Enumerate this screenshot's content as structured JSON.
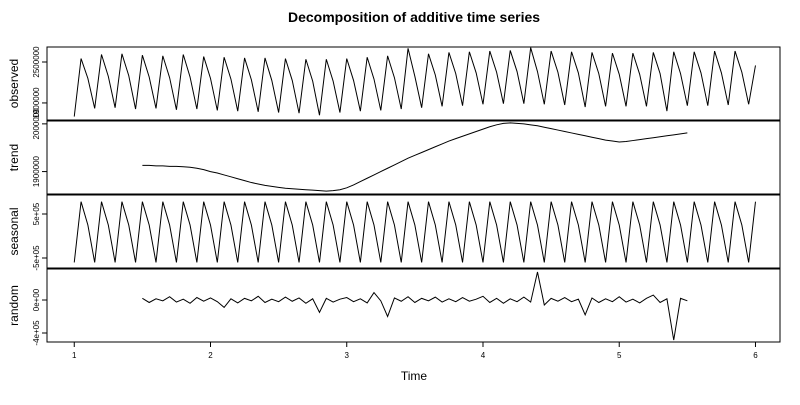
{
  "chart_data": {
    "type": "line",
    "title": "Decomposition of additive time series",
    "xlabel": "Time",
    "color": "#000000",
    "xlim": [
      0.8,
      6.18
    ],
    "xticks": [
      1,
      2,
      3,
      4,
      5,
      6
    ],
    "x": [
      1.0,
      1.05,
      1.1,
      1.15,
      1.2,
      1.25,
      1.3,
      1.35,
      1.4,
      1.45,
      1.5,
      1.55,
      1.6,
      1.65,
      1.7,
      1.75,
      1.8,
      1.85,
      1.9,
      1.95,
      2.0,
      2.05,
      2.1,
      2.15,
      2.2,
      2.25,
      2.3,
      2.35,
      2.4,
      2.45,
      2.5,
      2.55,
      2.6,
      2.65,
      2.7,
      2.75,
      2.8,
      2.85,
      2.9,
      2.95,
      3.0,
      3.05,
      3.1,
      3.15,
      3.2,
      3.25,
      3.3,
      3.35,
      3.4,
      3.45,
      3.5,
      3.55,
      3.6,
      3.65,
      3.7,
      3.75,
      3.8,
      3.85,
      3.9,
      3.95,
      4.0,
      4.05,
      4.1,
      4.15,
      4.2,
      4.25,
      4.3,
      4.35,
      4.4,
      4.45,
      4.5,
      4.55,
      4.6,
      4.65,
      4.7,
      4.75,
      4.8,
      4.85,
      4.9,
      4.95,
      5.0,
      5.05,
      5.1,
      5.15,
      5.2,
      5.25,
      5.3,
      5.35,
      5.4,
      5.45,
      5.5,
      5.55,
      5.6,
      5.65,
      5.7,
      5.75,
      5.8,
      5.85,
      5.9,
      5.95,
      6.0
    ],
    "panels": [
      {
        "ylabel": "observed",
        "ylim": [
          1650000,
          2720000
        ],
        "yticks": [
          1900000,
          2500000
        ],
        "values": [
          1700000,
          2550000,
          2260000,
          1820000,
          2610000,
          2290000,
          1830000,
          2620000,
          2300000,
          1810000,
          2600000,
          2280000,
          1820000,
          2590000,
          2270000,
          1800000,
          2610000,
          2280000,
          1810000,
          2580000,
          2260000,
          1790000,
          2570000,
          2250000,
          1780000,
          2560000,
          2240000,
          1770000,
          2560000,
          2230000,
          1760000,
          2550000,
          2230000,
          1750000,
          2540000,
          2220000,
          1720000,
          2540000,
          2220000,
          1760000,
          2550000,
          2230000,
          1780000,
          2570000,
          2250000,
          1790000,
          2590000,
          2270000,
          1810000,
          2700000,
          2290000,
          1830000,
          2620000,
          2310000,
          1850000,
          2640000,
          2330000,
          1860000,
          2650000,
          2340000,
          1880000,
          2660000,
          2350000,
          1890000,
          2670000,
          2360000,
          1890000,
          2710000,
          2360000,
          1880000,
          2660000,
          2350000,
          1870000,
          2650000,
          2340000,
          1840000,
          2640000,
          2330000,
          1850000,
          2630000,
          2320000,
          1850000,
          2630000,
          2320000,
          1850000,
          2640000,
          2330000,
          1780000,
          2650000,
          2330000,
          1860000,
          2650000,
          2340000,
          1860000,
          2660000,
          2340000,
          1870000,
          2660000,
          2350000,
          1880000,
          2450000
        ]
      },
      {
        "ylabel": "trend",
        "ylim": [
          1853000,
          2006000
        ],
        "yticks": [
          1900000,
          2000000
        ],
        "values": [
          null,
          null,
          null,
          null,
          null,
          null,
          null,
          null,
          null,
          null,
          1913000,
          1913000,
          1912000,
          1912000,
          1911000,
          1911000,
          1910000,
          1909000,
          1907000,
          1904000,
          1900000,
          1897000,
          1893000,
          1889000,
          1885000,
          1881000,
          1877000,
          1874000,
          1871000,
          1869000,
          1867000,
          1865000,
          1864000,
          1863000,
          1862000,
          1861000,
          1860000,
          1859000,
          1860000,
          1862000,
          1866000,
          1872000,
          1879000,
          1886000,
          1893000,
          1900000,
          1907000,
          1914000,
          1921000,
          1928000,
          1934000,
          1940000,
          1946000,
          1952000,
          1958000,
          1964000,
          1969000,
          1974000,
          1979000,
          1984000,
          1989000,
          1994000,
          1998000,
          2001000,
          2002000,
          2001000,
          2000000,
          1998000,
          1996000,
          1993000,
          1990000,
          1987000,
          1984000,
          1981000,
          1978000,
          1975000,
          1972000,
          1969000,
          1966000,
          1964000,
          1962000,
          1963000,
          1965000,
          1967000,
          1969000,
          1971000,
          1973000,
          1975000,
          1977000,
          1979000,
          1981000,
          null,
          null,
          null,
          null,
          null,
          null,
          null,
          null,
          null,
          null
        ]
      },
      {
        "ylabel": "seasonal",
        "ylim": [
          -727000,
          932000
        ],
        "yticks": [
          {
            "value": -500000,
            "label": "-5e+05"
          },
          {
            "value": 500000,
            "label": "5e+05"
          }
        ],
        "values": [
          -600000,
          780000,
          250000,
          -600000,
          780000,
          250000,
          -600000,
          780000,
          250000,
          -600000,
          780000,
          250000,
          -600000,
          780000,
          250000,
          -600000,
          780000,
          250000,
          -600000,
          780000,
          250000,
          -600000,
          780000,
          250000,
          -600000,
          780000,
          250000,
          -600000,
          780000,
          250000,
          -600000,
          780000,
          250000,
          -600000,
          780000,
          250000,
          -600000,
          780000,
          250000,
          -600000,
          780000,
          250000,
          -600000,
          780000,
          250000,
          -600000,
          780000,
          250000,
          -600000,
          780000,
          250000,
          -600000,
          780000,
          250000,
          -600000,
          780000,
          250000,
          -600000,
          780000,
          250000,
          -600000,
          780000,
          250000,
          -600000,
          780000,
          250000,
          -600000,
          780000,
          250000,
          -600000,
          780000,
          250000,
          -600000,
          780000,
          250000,
          -600000,
          780000,
          250000,
          -600000,
          780000,
          250000,
          -600000,
          780000,
          250000,
          -600000,
          780000,
          250000,
          -600000,
          780000,
          250000,
          -600000,
          780000,
          250000,
          -600000,
          780000,
          250000,
          -600000,
          780000,
          250000,
          -600000,
          780000
        ]
      },
      {
        "ylabel": "random",
        "ylim": [
          -509000,
          376000
        ],
        "yticks": [
          {
            "value": -400000,
            "label": "-4e+05"
          },
          {
            "value": 0,
            "label": "0e+00"
          }
        ],
        "values": [
          null,
          null,
          null,
          null,
          null,
          null,
          null,
          null,
          null,
          null,
          20000,
          -30000,
          15000,
          -10000,
          40000,
          -25000,
          10000,
          -40000,
          30000,
          -15000,
          25000,
          -20000,
          -90000,
          15000,
          -35000,
          20000,
          -10000,
          45000,
          -30000,
          10000,
          -20000,
          35000,
          -15000,
          25000,
          -40000,
          15000,
          -150000,
          20000,
          -25000,
          10000,
          30000,
          -20000,
          15000,
          -35000,
          90000,
          -10000,
          -200000,
          25000,
          -15000,
          40000,
          -30000,
          20000,
          -10000,
          35000,
          -25000,
          15000,
          -20000,
          30000,
          -15000,
          10000,
          45000,
          -30000,
          20000,
          -40000,
          15000,
          -20000,
          35000,
          -25000,
          340000,
          -60000,
          20000,
          -15000,
          30000,
          -20000,
          10000,
          -180000,
          25000,
          -30000,
          15000,
          -20000,
          40000,
          -25000,
          10000,
          -35000,
          20000,
          60000,
          -30000,
          15000,
          -485000,
          20000,
          -10000,
          null,
          null,
          null,
          null,
          null,
          null,
          null,
          null,
          null,
          null
        ]
      }
    ]
  }
}
